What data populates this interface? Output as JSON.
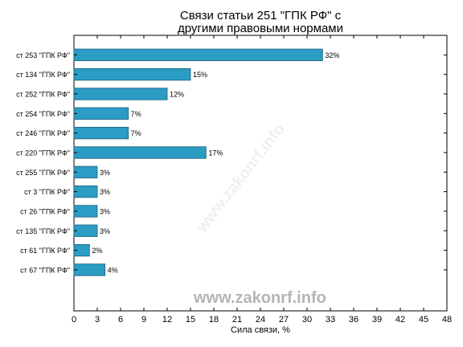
{
  "chart_data": {
    "type": "bar",
    "orientation": "horizontal",
    "title": [
      "Связи статьи 251 \"ГПК РФ\" с",
      "другими правовыми нормами"
    ],
    "xlabel": "Сила связи, %",
    "ylabel": "",
    "categories": [
      "ст 253 \"ГПК РФ\"",
      "ст 134 \"ГПК РФ\"",
      "ст 252 \"ГПК РФ\"",
      "ст 254 \"ГПК РФ\"",
      "ст 246 \"ГПК РФ\"",
      "ст 220 \"ГПК РФ\"",
      "ст 255 \"ГПК РФ\"",
      "ст 3 \"ГПК РФ\"",
      "ст 26 \"ГПК РФ\"",
      "ст 135 \"ГПК РФ\"",
      "ст 61 \"ГПК РФ\"",
      "ст 67 \"ГПК РФ\""
    ],
    "values": [
      32,
      15,
      12,
      7,
      7,
      17,
      3,
      3,
      3,
      3,
      2,
      4
    ],
    "value_labels": [
      "32%",
      "15%",
      "12%",
      "7%",
      "7%",
      "17%",
      "3%",
      "3%",
      "3%",
      "3%",
      "2%",
      "4%"
    ],
    "xlim": [
      0,
      48
    ],
    "xticks": [
      0,
      3,
      6,
      9,
      12,
      15,
      18,
      21,
      24,
      27,
      30,
      33,
      36,
      39,
      42,
      45,
      48
    ],
    "grid": false,
    "bar_color": "#2b9cc4",
    "bar_edge_color": "#1d5f78"
  },
  "watermark": {
    "bottom": "www.zakonrf.info",
    "diagonal": "www.zakonrf.info"
  }
}
